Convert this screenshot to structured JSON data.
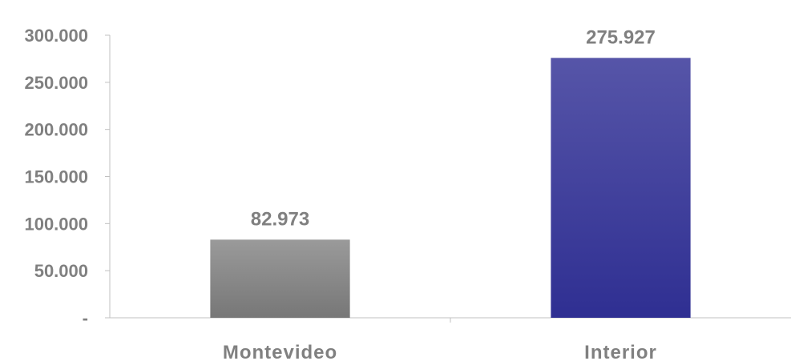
{
  "chart_data": {
    "type": "bar",
    "categories": [
      "Montevideo",
      "Interior"
    ],
    "values": [
      82973,
      275927
    ],
    "data_labels": [
      "82.973",
      "275.927"
    ],
    "title": "",
    "xlabel": "",
    "ylabel": "",
    "ylim": [
      0,
      300000
    ],
    "y_ticks": [
      0,
      50000,
      100000,
      150000,
      200000,
      250000,
      300000
    ],
    "y_tick_labels": [
      "-",
      "50.000",
      "100.000",
      "150.000",
      "200.000",
      "250.000",
      "300.000"
    ],
    "grid": false,
    "legend": "none",
    "colors": {
      "montevideo_top": "#9a9a9a",
      "montevideo_bottom": "#777777",
      "interior_top": "#5655a8",
      "interior_bottom": "#2f2f92",
      "axis": "#c0c0c0",
      "text": "#808080"
    }
  }
}
